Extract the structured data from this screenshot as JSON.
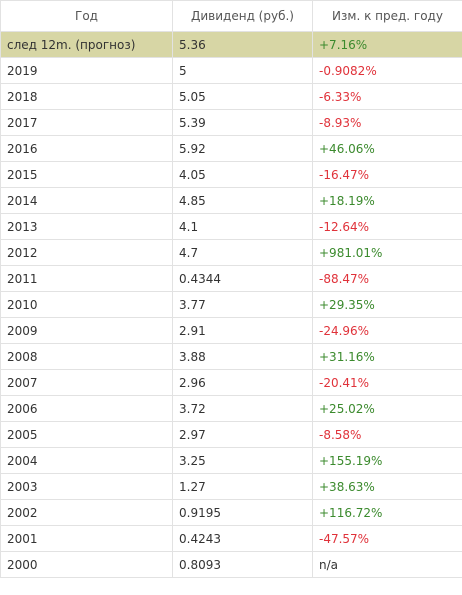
{
  "colors": {
    "forecast_row_bg": "#d7d6a5",
    "positive": "#3b8a2d",
    "negative": "#e0323a",
    "border": "#e2e2e2"
  },
  "table": {
    "headers": [
      "Год",
      "Дивиденд (руб.)",
      "Изм. к пред. году"
    ],
    "rows": [
      {
        "year": "след 12m. (прогноз)",
        "dividend": "5.36",
        "change": "+7.16%",
        "trend": "pos"
      },
      {
        "year": "2019",
        "dividend": "5",
        "change": "-0.9082%",
        "trend": "neg"
      },
      {
        "year": "2018",
        "dividend": "5.05",
        "change": "-6.33%",
        "trend": "neg"
      },
      {
        "year": "2017",
        "dividend": "5.39",
        "change": "-8.93%",
        "trend": "neg"
      },
      {
        "year": "2016",
        "dividend": "5.92",
        "change": "+46.06%",
        "trend": "pos"
      },
      {
        "year": "2015",
        "dividend": "4.05",
        "change": "-16.47%",
        "trend": "neg"
      },
      {
        "year": "2014",
        "dividend": "4.85",
        "change": "+18.19%",
        "trend": "pos"
      },
      {
        "year": "2013",
        "dividend": "4.1",
        "change": "-12.64%",
        "trend": "neg"
      },
      {
        "year": "2012",
        "dividend": "4.7",
        "change": "+981.01%",
        "trend": "pos"
      },
      {
        "year": "2011",
        "dividend": "0.4344",
        "change": "-88.47%",
        "trend": "neg"
      },
      {
        "year": "2010",
        "dividend": "3.77",
        "change": "+29.35%",
        "trend": "pos"
      },
      {
        "year": "2009",
        "dividend": "2.91",
        "change": "-24.96%",
        "trend": "neg"
      },
      {
        "year": "2008",
        "dividend": "3.88",
        "change": "+31.16%",
        "trend": "pos"
      },
      {
        "year": "2007",
        "dividend": "2.96",
        "change": "-20.41%",
        "trend": "neg"
      },
      {
        "year": "2006",
        "dividend": "3.72",
        "change": "+25.02%",
        "trend": "pos"
      },
      {
        "year": "2005",
        "dividend": "2.97",
        "change": "-8.58%",
        "trend": "neg"
      },
      {
        "year": "2004",
        "dividend": "3.25",
        "change": "+155.19%",
        "trend": "pos"
      },
      {
        "year": "2003",
        "dividend": "1.27",
        "change": "+38.63%",
        "trend": "pos"
      },
      {
        "year": "2002",
        "dividend": "0.9195",
        "change": "+116.72%",
        "trend": "pos"
      },
      {
        "year": "2001",
        "dividend": "0.4243",
        "change": "-47.57%",
        "trend": "neg"
      },
      {
        "year": "2000",
        "dividend": "0.8093",
        "change": "n/a",
        "trend": "na"
      }
    ]
  }
}
